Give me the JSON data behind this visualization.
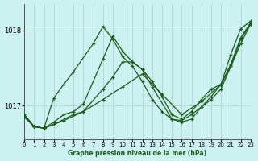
{
  "title": "Graphe pression niveau de la mer (hPa)",
  "bg_color": "#cdf0f0",
  "grid_color": "#b0d4d4",
  "line_color": "#1a5c1a",
  "xlim": [
    0,
    23
  ],
  "ylim": [
    1016.55,
    1018.35
  ],
  "yticks": [
    1017,
    1018
  ],
  "xticks": [
    0,
    1,
    2,
    3,
    4,
    5,
    6,
    7,
    8,
    9,
    10,
    11,
    12,
    13,
    14,
    15,
    16,
    17,
    18,
    19,
    20,
    21,
    22,
    23
  ],
  "series": [
    {
      "x": [
        0,
        1,
        2,
        3,
        4,
        5,
        7,
        8,
        9,
        10,
        11,
        12,
        13,
        14,
        15,
        16,
        17,
        18,
        19,
        20,
        21,
        22,
        23
      ],
      "y": [
        1016.85,
        1016.72,
        1016.7,
        1017.1,
        1017.28,
        1017.45,
        1017.82,
        1018.05,
        1017.88,
        1017.65,
        1017.52,
        1017.32,
        1017.08,
        1016.92,
        1016.82,
        1016.8,
        1016.88,
        1016.98,
        1017.08,
        1017.22,
        1017.52,
        1017.82,
        1018.08
      ]
    },
    {
      "x": [
        0,
        1,
        2,
        3,
        4,
        5,
        6,
        8,
        9,
        10,
        11,
        12,
        13,
        15,
        16,
        17,
        18,
        19,
        20,
        21,
        22,
        23
      ],
      "y": [
        1016.88,
        1016.72,
        1016.7,
        1016.78,
        1016.88,
        1016.92,
        1017.02,
        1017.62,
        1017.92,
        1017.72,
        1017.58,
        1017.48,
        1017.25,
        1016.82,
        1016.78,
        1016.82,
        1016.98,
        1017.12,
        1017.28,
        1017.68,
        1018.02,
        1018.12
      ]
    },
    {
      "x": [
        0,
        1,
        2,
        4,
        6,
        8,
        10,
        12,
        14,
        16,
        18,
        20,
        21,
        22,
        23
      ],
      "y": [
        1016.85,
        1016.72,
        1016.7,
        1016.8,
        1016.92,
        1017.08,
        1017.25,
        1017.42,
        1017.15,
        1016.88,
        1017.05,
        1017.28,
        1017.55,
        1017.9,
        1018.1
      ]
    },
    {
      "x": [
        0,
        1,
        2,
        3,
        5,
        6,
        8,
        9,
        10,
        11,
        12,
        13,
        14,
        15,
        16,
        17,
        18,
        19,
        20,
        21,
        22,
        23
      ],
      "y": [
        1016.88,
        1016.72,
        1016.7,
        1016.75,
        1016.88,
        1016.92,
        1017.22,
        1017.38,
        1017.58,
        1017.58,
        1017.48,
        1017.32,
        1017.12,
        1016.88,
        1016.82,
        1016.92,
        1017.08,
        1017.22,
        1017.28,
        1017.52,
        1017.88,
        1018.08
      ]
    }
  ]
}
